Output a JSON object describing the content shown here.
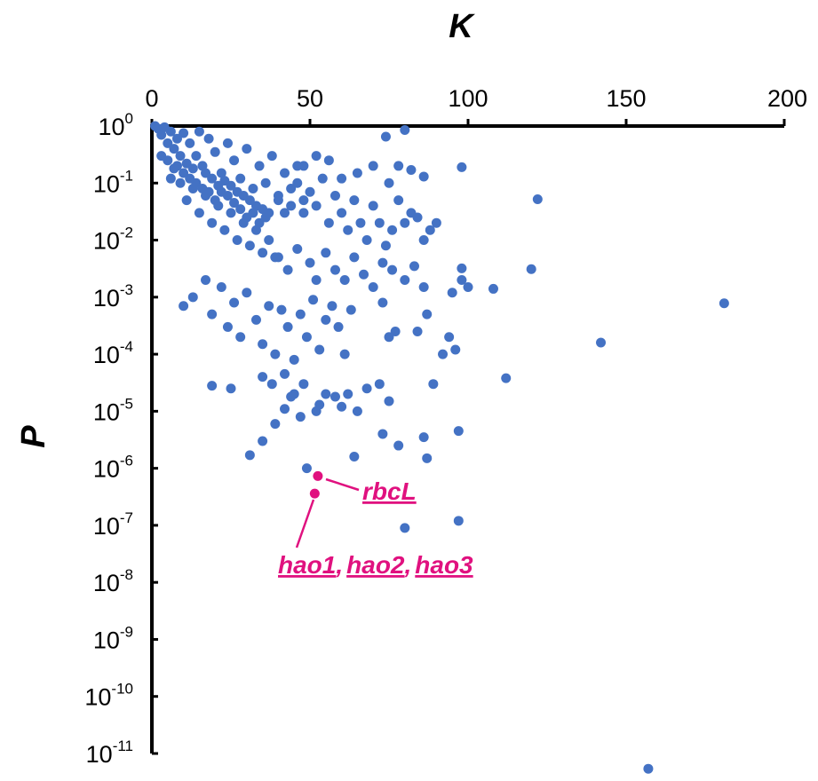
{
  "chart_data": {
    "type": "scatter",
    "title": "",
    "xlabel": "K",
    "ylabel": "P",
    "xlim": [
      0,
      200
    ],
    "ylim_log10": [
      -11,
      0
    ],
    "y_scale": "log",
    "x_ticks": [
      "0",
      "50",
      "100",
      "150",
      "200"
    ],
    "y_ticks": [
      {
        "base": "10",
        "exp": "0"
      },
      {
        "base": "10",
        "exp": "-1"
      },
      {
        "base": "10",
        "exp": "-2"
      },
      {
        "base": "10",
        "exp": "-3"
      },
      {
        "base": "10",
        "exp": "-4"
      },
      {
        "base": "10",
        "exp": "-5"
      },
      {
        "base": "10",
        "exp": "-6"
      },
      {
        "base": "10",
        "exp": "-7"
      },
      {
        "base": "10",
        "exp": "-8"
      },
      {
        "base": "10",
        "exp": "-9"
      },
      {
        "base": "10",
        "exp": "-10"
      },
      {
        "base": "10",
        "exp": "-11"
      }
    ],
    "grid": false,
    "legend": "none",
    "colors": {
      "points": "#4472c4",
      "highlight": "#e0117f",
      "axis": "#000000"
    },
    "series": [
      {
        "points": [
          [
            1,
            1.0
          ],
          [
            2,
            0.9
          ],
          [
            3,
            0.7
          ],
          [
            4,
            0.95
          ],
          [
            5,
            0.5
          ],
          [
            6,
            0.8
          ],
          [
            3,
            0.3
          ],
          [
            7,
            0.4
          ],
          [
            8,
            0.6
          ],
          [
            10,
            0.75
          ],
          [
            12,
            0.5
          ],
          [
            14,
            0.3
          ],
          [
            15,
            0.8
          ],
          [
            16,
            0.2
          ],
          [
            18,
            0.6
          ],
          [
            20,
            0.35
          ],
          [
            22,
            0.15
          ],
          [
            24,
            0.5
          ],
          [
            26,
            0.25
          ],
          [
            28,
            0.12
          ],
          [
            30,
            0.4
          ],
          [
            32,
            0.08
          ],
          [
            34,
            0.2
          ],
          [
            36,
            0.1
          ],
          [
            38,
            0.3
          ],
          [
            40,
            0.06
          ],
          [
            42,
            0.15
          ],
          [
            44,
            0.04
          ],
          [
            46,
            0.2
          ],
          [
            48,
            0.03
          ],
          [
            9,
            0.1
          ],
          [
            11,
            0.05
          ],
          [
            13,
            0.08
          ],
          [
            15,
            0.03
          ],
          [
            17,
            0.06
          ],
          [
            19,
            0.02
          ],
          [
            21,
            0.04
          ],
          [
            23,
            0.015
          ],
          [
            25,
            0.03
          ],
          [
            27,
            0.01
          ],
          [
            29,
            0.02
          ],
          [
            31,
            0.008
          ],
          [
            33,
            0.015
          ],
          [
            35,
            0.006
          ],
          [
            37,
            0.01
          ],
          [
            39,
            0.005
          ],
          [
            6,
            0.12
          ],
          [
            8,
            0.2
          ],
          [
            10,
            0.15
          ],
          [
            12,
            0.12
          ],
          [
            14,
            0.1
          ],
          [
            16,
            0.08
          ],
          [
            18,
            0.07
          ],
          [
            20,
            0.05
          ],
          [
            22,
            0.07
          ],
          [
            24,
            0.06
          ],
          [
            26,
            0.045
          ],
          [
            28,
            0.035
          ],
          [
            30,
            0.025
          ],
          [
            32,
            0.03
          ],
          [
            34,
            0.02
          ],
          [
            36,
            0.025
          ],
          [
            5,
            0.25
          ],
          [
            7,
            0.18
          ],
          [
            9,
            0.3
          ],
          [
            11,
            0.22
          ],
          [
            13,
            0.18
          ],
          [
            17,
            0.15
          ],
          [
            19,
            0.12
          ],
          [
            21,
            0.09
          ],
          [
            23,
            0.11
          ],
          [
            25,
            0.09
          ],
          [
            27,
            0.07
          ],
          [
            29,
            0.06
          ],
          [
            31,
            0.05
          ],
          [
            33,
            0.04
          ],
          [
            35,
            0.035
          ],
          [
            37,
            0.03
          ],
          [
            10,
            0.0007
          ],
          [
            13,
            0.001
          ],
          [
            17,
            0.002
          ],
          [
            19,
            0.0005
          ],
          [
            22,
            0.0015
          ],
          [
            24,
            0.0003
          ],
          [
            26,
            0.0008
          ],
          [
            28,
            0.0002
          ],
          [
            30,
            0.0012
          ],
          [
            33,
            0.0004
          ],
          [
            35,
            0.00015
          ],
          [
            37,
            0.0007
          ],
          [
            39,
            0.0001
          ],
          [
            41,
            0.0006
          ],
          [
            43,
            0.0003
          ],
          [
            45,
            8e-05
          ],
          [
            47,
            0.0005
          ],
          [
            49,
            0.0002
          ],
          [
            51,
            0.0009
          ],
          [
            53,
            0.00012
          ],
          [
            55,
            0.0004
          ],
          [
            57,
            0.0007
          ],
          [
            59,
            0.0003
          ],
          [
            61,
            0.0001
          ],
          [
            63,
            0.0006
          ],
          [
            19,
            2.8e-05
          ],
          [
            25,
            2.5e-05
          ],
          [
            35,
            4e-05
          ],
          [
            38,
            3e-05
          ],
          [
            42,
            4.5e-05
          ],
          [
            45,
            2e-05
          ],
          [
            48,
            3e-05
          ],
          [
            52,
            1e-05
          ],
          [
            55,
            2e-05
          ],
          [
            58,
            1.8e-05
          ],
          [
            62,
            2e-05
          ],
          [
            65,
            1e-05
          ],
          [
            68,
            2.5e-05
          ],
          [
            72,
            3e-05
          ],
          [
            75,
            1.5e-05
          ],
          [
            39,
            6e-06
          ],
          [
            42,
            1.1e-05
          ],
          [
            44,
            1.8e-05
          ],
          [
            47,
            8e-06
          ],
          [
            53,
            1.3e-05
          ],
          [
            60,
            1.2e-05
          ],
          [
            35,
            3e-06
          ],
          [
            31,
            1.7e-06
          ],
          [
            73,
            4e-06
          ],
          [
            78,
            2.5e-06
          ],
          [
            86,
            3.5e-06
          ],
          [
            87,
            1.5e-06
          ],
          [
            64,
            1.6e-06
          ],
          [
            49,
            1e-06
          ],
          [
            40,
            0.05
          ],
          [
            42,
            0.03
          ],
          [
            44,
            0.08
          ],
          [
            46,
            0.1
          ],
          [
            48,
            0.05
          ],
          [
            50,
            0.07
          ],
          [
            52,
            0.04
          ],
          [
            54,
            0.12
          ],
          [
            56,
            0.02
          ],
          [
            58,
            0.06
          ],
          [
            60,
            0.03
          ],
          [
            62,
            0.015
          ],
          [
            64,
            0.05
          ],
          [
            66,
            0.02
          ],
          [
            68,
            0.01
          ],
          [
            70,
            0.04
          ],
          [
            72,
            0.02
          ],
          [
            74,
            0.008
          ],
          [
            76,
            0.015
          ],
          [
            78,
            0.05
          ],
          [
            80,
            0.02
          ],
          [
            82,
            0.03
          ],
          [
            84,
            0.025
          ],
          [
            86,
            0.01
          ],
          [
            88,
            0.015
          ],
          [
            90,
            0.02
          ],
          [
            40,
            0.005
          ],
          [
            43,
            0.003
          ],
          [
            46,
            0.007
          ],
          [
            50,
            0.004
          ],
          [
            52,
            0.002
          ],
          [
            55,
            0.006
          ],
          [
            58,
            0.003
          ],
          [
            61,
            0.002
          ],
          [
            64,
            0.005
          ],
          [
            67,
            0.0025
          ],
          [
            70,
            0.0015
          ],
          [
            73,
            0.004
          ],
          [
            76,
            0.003
          ],
          [
            80,
            0.002
          ],
          [
            83,
            0.0035
          ],
          [
            86,
            0.0015
          ],
          [
            73,
            0.0008
          ],
          [
            75,
            0.0002
          ],
          [
            77,
            0.00025
          ],
          [
            84,
            0.00025
          ],
          [
            92,
            0.0001
          ],
          [
            94,
            0.0002
          ],
          [
            89,
            3e-05
          ],
          [
            112,
            3.8e-05
          ],
          [
            100,
            0.0015
          ],
          [
            108,
            0.0014
          ],
          [
            95,
            0.0012
          ],
          [
            98,
            0.002
          ],
          [
            98,
            0.0032
          ],
          [
            120,
            0.0031
          ],
          [
            87,
            0.0005
          ],
          [
            48,
            0.2
          ],
          [
            52,
            0.3
          ],
          [
            56,
            0.25
          ],
          [
            60,
            0.12
          ],
          [
            65,
            0.15
          ],
          [
            70,
            0.2
          ],
          [
            75,
            0.1
          ],
          [
            78,
            0.2
          ],
          [
            82,
            0.17
          ],
          [
            86,
            0.13
          ],
          [
            74,
            0.65
          ],
          [
            80,
            0.85
          ],
          [
            98,
            0.19
          ],
          [
            122,
            0.052
          ],
          [
            181,
            0.00078
          ],
          [
            142,
            0.00016
          ],
          [
            157,
            5.4e-12
          ],
          [
            97,
            1.2e-07
          ],
          [
            80,
            9e-08
          ],
          [
            96,
            0.00012
          ],
          [
            97,
            4.5e-06
          ]
        ]
      },
      {
        "highlight": true,
        "points": [
          [
            52.5,
            7.3e-07
          ],
          [
            51.5,
            3.6e-07
          ]
        ]
      }
    ],
    "annotations": {
      "rbcl": "rbcL",
      "hao1": "hao1",
      "hao2": "hao2",
      "hao3": "hao3",
      "sep": ","
    }
  }
}
